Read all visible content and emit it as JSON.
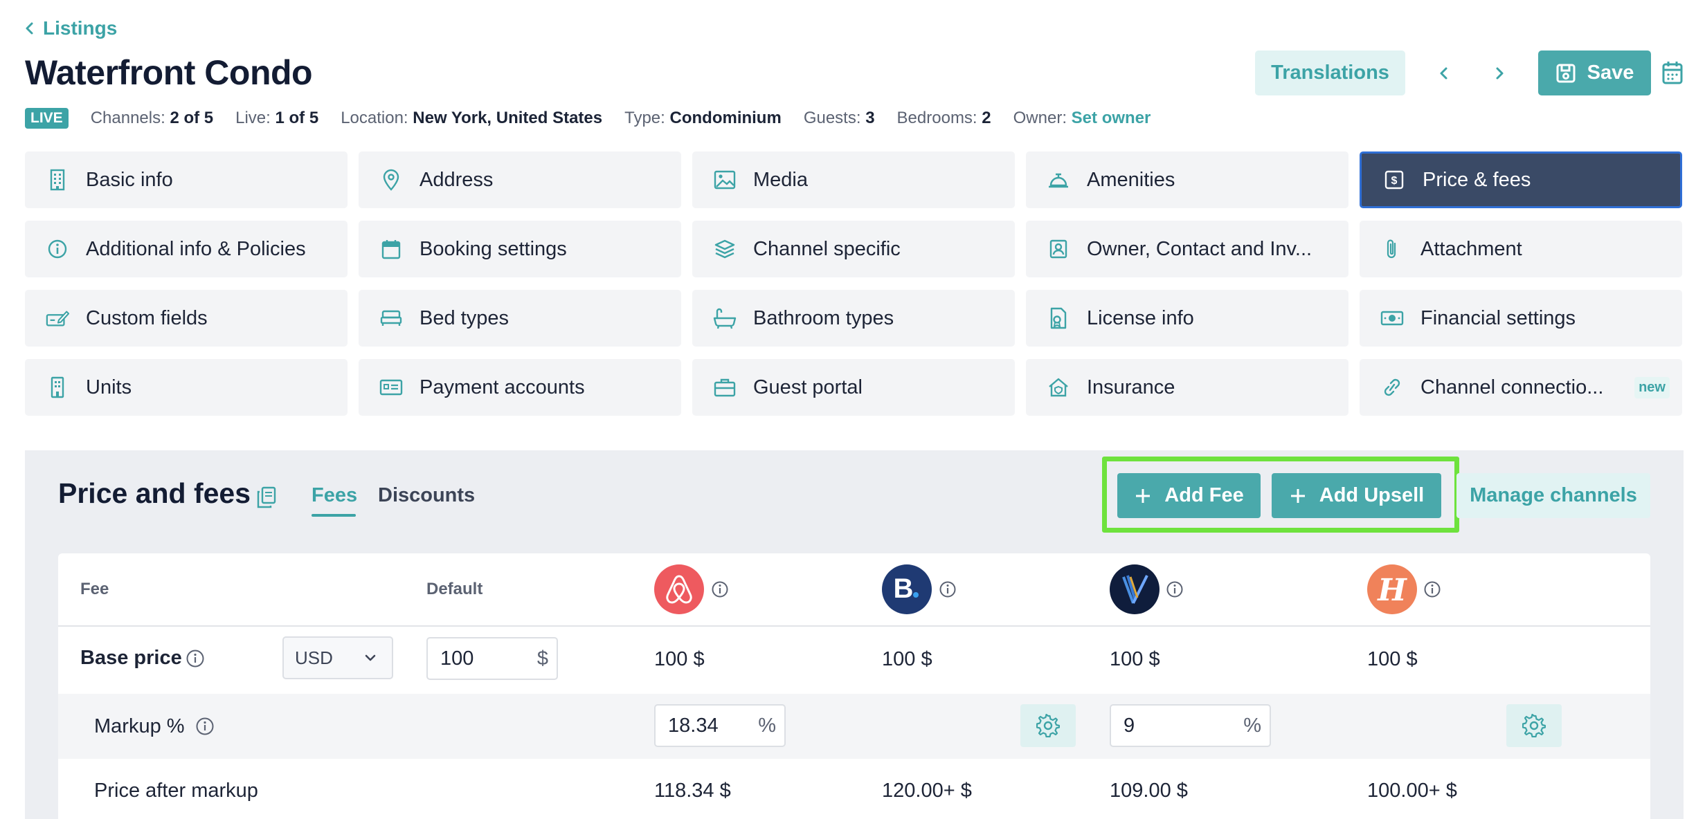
{
  "header": {
    "back_label": "Listings",
    "title": "Waterfront Condo",
    "translations_label": "Translations",
    "save_label": "Save"
  },
  "meta": {
    "status_badge": "LIVE",
    "channels_label": "Channels:",
    "channels_value": "2 of 5",
    "live_label": "Live:",
    "live_value": "1 of 5",
    "location_label": "Location:",
    "location_value": "New York, United States",
    "type_label": "Type:",
    "type_value": "Condominium",
    "guests_label": "Guests:",
    "guests_value": "3",
    "bedrooms_label": "Bedrooms:",
    "bedrooms_value": "2",
    "owner_label": "Owner:",
    "owner_value": "Set owner"
  },
  "tiles": [
    {
      "label": "Basic info",
      "icon": "building-icon"
    },
    {
      "label": "Address",
      "icon": "map-pin-icon"
    },
    {
      "label": "Media",
      "icon": "image-icon"
    },
    {
      "label": "Amenities",
      "icon": "service-bell-icon"
    },
    {
      "label": "Price & fees",
      "icon": "dollar-square-icon",
      "active": true
    },
    {
      "label": "Additional info & Policies",
      "icon": "info-circle-icon"
    },
    {
      "label": "Booking settings",
      "icon": "calendar-icon"
    },
    {
      "label": "Channel specific",
      "icon": "layers-icon"
    },
    {
      "label": "Owner, Contact and Inv...",
      "icon": "contact-card-icon"
    },
    {
      "label": "Attachment",
      "icon": "paperclip-icon"
    },
    {
      "label": "Custom fields",
      "icon": "edit-field-icon"
    },
    {
      "label": "Bed types",
      "icon": "bed-icon"
    },
    {
      "label": "Bathroom types",
      "icon": "bathtub-icon"
    },
    {
      "label": "License info",
      "icon": "license-icon"
    },
    {
      "label": "Financial settings",
      "icon": "money-icon"
    },
    {
      "label": "Units",
      "icon": "units-building-icon"
    },
    {
      "label": "Payment accounts",
      "icon": "payment-card-icon"
    },
    {
      "label": "Guest portal",
      "icon": "briefcase-icon"
    },
    {
      "label": "Insurance",
      "icon": "house-shield-icon"
    },
    {
      "label": "Channel connectio...",
      "icon": "link-icon",
      "badge": "new"
    }
  ],
  "section": {
    "title": "Price and fees",
    "tab_fees": "Fees",
    "tab_discounts": "Discounts",
    "add_fee_label": "Add Fee",
    "add_upsell_label": "Add Upsell",
    "manage_channels_label": "Manage channels"
  },
  "table": {
    "col_fee": "Fee",
    "col_default": "Default",
    "channels": [
      "airbnb-logo",
      "booking-logo",
      "vrbo-logo",
      "houfy-logo"
    ],
    "base_price": {
      "label": "Base price",
      "currency": "USD",
      "default_value": "100",
      "default_suffix": "$",
      "values": [
        "100 $",
        "100 $",
        "100 $",
        "100 $"
      ]
    },
    "markup": {
      "label": "Markup %",
      "airbnb_value": "18.34",
      "vrbo_value": "9",
      "suffix": "%"
    },
    "price_after_markup": {
      "label": "Price after markup",
      "values": [
        "118.34 $",
        "120.00+ $",
        "109.00 $",
        "100.00+ $"
      ]
    }
  },
  "colors": {
    "accent": "#3ca3a6",
    "active_tile": "#3a4a66",
    "highlight": "#6ee23d"
  }
}
